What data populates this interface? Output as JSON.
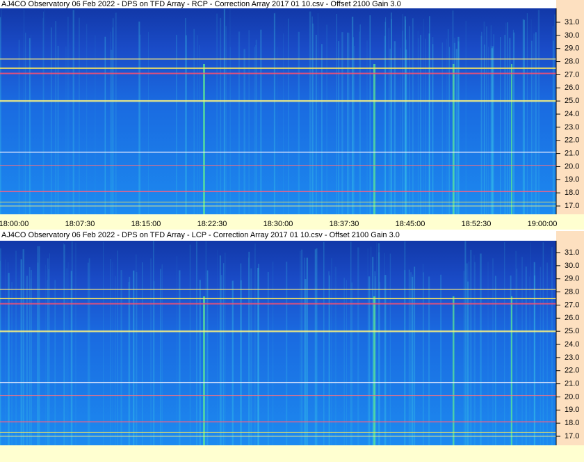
{
  "panels": [
    {
      "title": "AJ4CO Observatory 06 Feb 2022  -  DPS on TFD Array  -  RCP  -  Correction Array 2017 01 10.csv  -  Offset 2100  Gain 3.0",
      "yticks": [
        {
          "value": 31,
          "label": "31.0"
        },
        {
          "value": 30,
          "label": "30.0"
        },
        {
          "value": 29,
          "label": "29.0"
        },
        {
          "value": 28,
          "label": "28.0"
        },
        {
          "value": 27,
          "label": "27.0"
        },
        {
          "value": 26,
          "label": "26.0"
        },
        {
          "value": 25,
          "label": "25.0"
        },
        {
          "value": 24,
          "label": "24.0"
        },
        {
          "value": 23,
          "label": "23.0"
        },
        {
          "value": 22,
          "label": "22.0"
        },
        {
          "value": 21,
          "label": "21.0"
        },
        {
          "value": 20,
          "label": "20.0"
        },
        {
          "value": 19,
          "label": "19.0"
        },
        {
          "value": 18,
          "label": "18.0"
        },
        {
          "value": 17,
          "label": "17.0"
        }
      ],
      "xticks": [
        "18:00:00",
        "18:07:30",
        "18:15:00",
        "18:22:30",
        "18:30:00",
        "18:37:30",
        "18:45:00",
        "18:52:30",
        "19:00:00"
      ]
    },
    {
      "title": "AJ4CO Observatory 06 Feb 2022  -  DPS on TFD Array  -  LCP  -  Correction Array 2017 01 10.csv  -  Offset 2100  Gain 3.0",
      "yticks": [
        {
          "value": 31,
          "label": "31.0"
        },
        {
          "value": 30,
          "label": "30.0"
        },
        {
          "value": 29,
          "label": "29.0"
        },
        {
          "value": 28,
          "label": "28.0"
        },
        {
          "value": 27,
          "label": "27.0"
        },
        {
          "value": 26,
          "label": "26.0"
        },
        {
          "value": 25,
          "label": "25.0"
        },
        {
          "value": 24,
          "label": "24.0"
        },
        {
          "value": 23,
          "label": "23.0"
        },
        {
          "value": 22,
          "label": "22.0"
        },
        {
          "value": 21,
          "label": "21.0"
        },
        {
          "value": 20,
          "label": "20.0"
        },
        {
          "value": 19,
          "label": "19.0"
        },
        {
          "value": 18,
          "label": "18.0"
        },
        {
          "value": 17,
          "label": "17.0"
        }
      ]
    }
  ]
}
